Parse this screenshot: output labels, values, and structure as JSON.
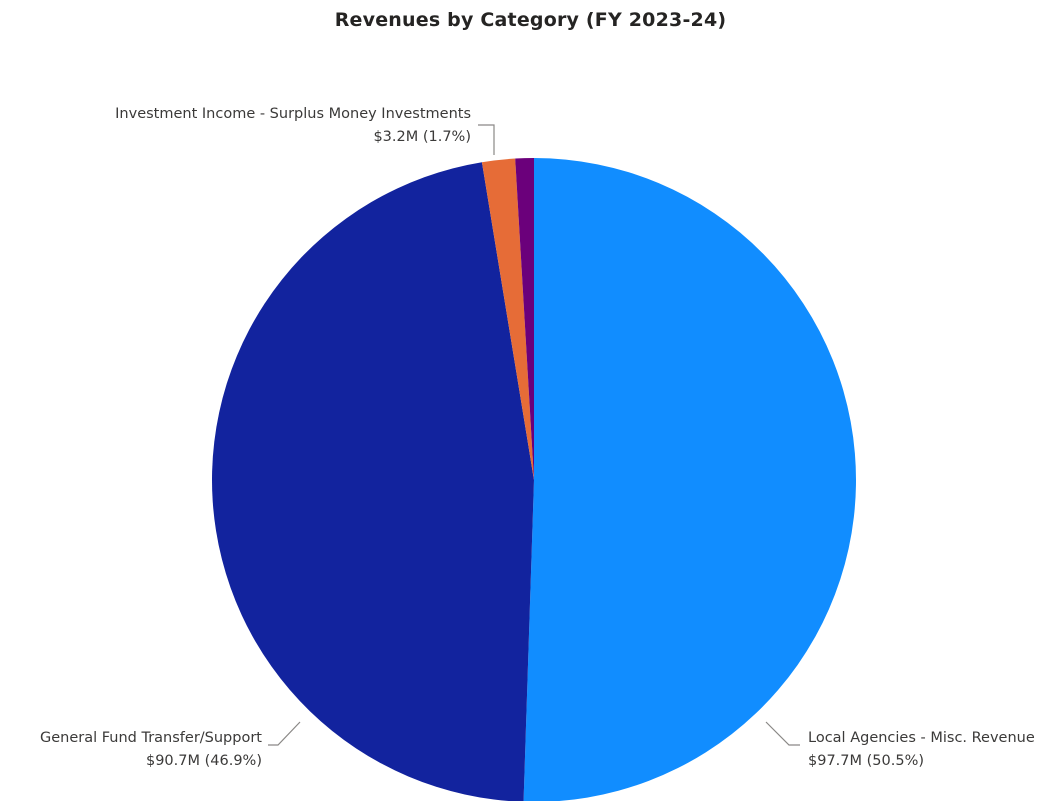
{
  "chart_data": {
    "type": "pie",
    "title": "Revenues by Category (FY 2023-24)",
    "slices": [
      {
        "name": "Local Agencies - Misc. Revenue",
        "value": 97.7,
        "value_label": "$97.7M (50.5%)",
        "percent": 50.5,
        "color": "#118dff"
      },
      {
        "name": "General Fund Transfer/Support",
        "value": 90.7,
        "value_label": "$90.7M (46.9%)",
        "percent": 46.9,
        "color": "#12239e"
      },
      {
        "name": "Investment Income - Surplus Money Investments",
        "value": 3.2,
        "value_label": "$3.2M (1.7%)",
        "percent": 1.7,
        "color": "#e66c37"
      },
      {
        "name": "",
        "value": 1.8,
        "value_label": "",
        "percent": 0.9,
        "color": "#6b007b"
      }
    ]
  }
}
